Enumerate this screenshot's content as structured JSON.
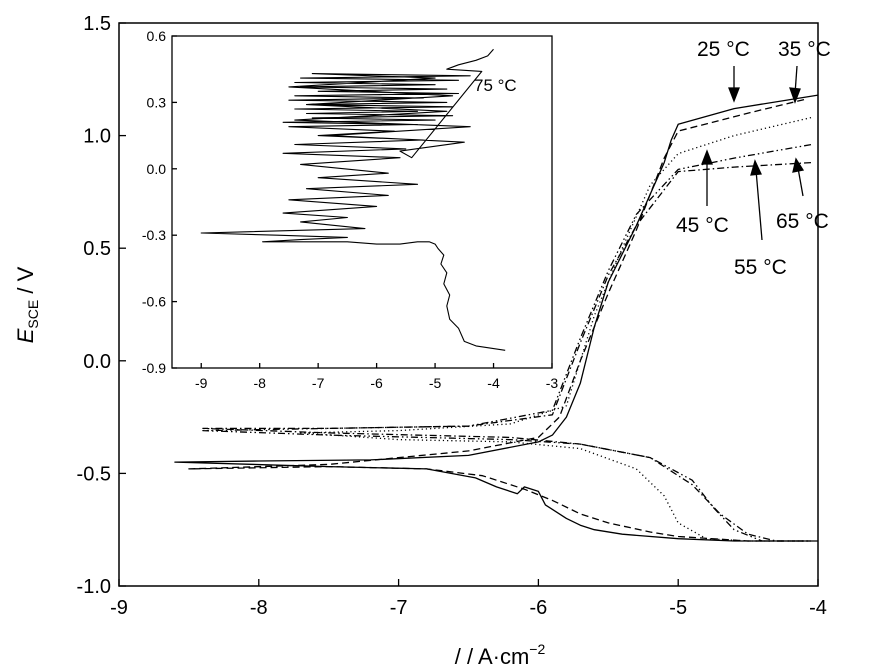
{
  "chart_data": [
    {
      "type": "line",
      "title": "",
      "ylabel_italic": "E",
      "ylabel_sub": "SCE",
      "ylabel_unit": " / V",
      "xlabel_prefix": "/",
      "xlabel": " / A·cm",
      "xlabel_sup": "−2",
      "xlim": [
        -9,
        -4
      ],
      "ylim": [
        -1.0,
        1.5
      ],
      "x_ticks": [
        -9,
        -8,
        -7,
        -6,
        -5,
        -4
      ],
      "x_tick_labels": [
        "-9",
        "-8",
        "-7",
        "-6",
        "-5",
        "-4"
      ],
      "y_ticks": [
        -1.0,
        -0.5,
        0.0,
        0.5,
        1.0,
        1.5
      ],
      "y_tick_labels": [
        "-1.0",
        "-0.5",
        "0.0",
        "0.5",
        "1.0",
        "1.5"
      ],
      "grid": false,
      "legend": "none",
      "annotations": [
        {
          "text": "25 °C",
          "series": "25 °C"
        },
        {
          "text": "35 °C",
          "series": "35 °C"
        },
        {
          "text": "45 °C",
          "series": "45 °C"
        },
        {
          "text": "55 °C",
          "series": "55 °C"
        },
        {
          "text": "65 °C",
          "series": "65 °C"
        }
      ],
      "series": [
        {
          "name": "25 °C",
          "style": "solid",
          "x": [
            -4.0,
            -4.6,
            -5.0,
            -5.05,
            -5.1,
            -5.3,
            -5.5,
            -5.6,
            -5.7,
            -5.8,
            -5.9,
            -6.0,
            -6.5,
            -7.2,
            -8.0,
            -8.6,
            -7.5,
            -6.8,
            -6.45,
            -6.3,
            -6.15,
            -6.1,
            -6.0,
            -5.95,
            -5.8,
            -5.7,
            -5.6,
            -5.4,
            -5.0,
            -4.6,
            -4.0
          ],
          "y": [
            1.18,
            1.12,
            1.05,
            0.98,
            0.88,
            0.6,
            0.35,
            0.15,
            -0.1,
            -0.25,
            -0.33,
            -0.36,
            -0.42,
            -0.44,
            -0.445,
            -0.45,
            -0.47,
            -0.48,
            -0.52,
            -0.56,
            -0.59,
            -0.56,
            -0.58,
            -0.64,
            -0.7,
            -0.73,
            -0.75,
            -0.77,
            -0.79,
            -0.8,
            -0.8
          ]
        },
        {
          "name": "35 °C",
          "style": "dashed",
          "x": [
            -4.1,
            -4.5,
            -5.0,
            -5.1,
            -5.3,
            -5.5,
            -5.7,
            -5.85,
            -6.0,
            -6.5,
            -7.5,
            -8.5,
            -7.5,
            -6.8,
            -6.4,
            -6.1,
            -5.9,
            -5.7,
            -5.5,
            -5.2,
            -5.0,
            -4.5,
            -4.1
          ],
          "y": [
            1.16,
            1.1,
            1.02,
            0.9,
            0.58,
            0.3,
            0.0,
            -0.25,
            -0.34,
            -0.4,
            -0.46,
            -0.48,
            -0.47,
            -0.48,
            -0.51,
            -0.57,
            -0.62,
            -0.68,
            -0.72,
            -0.76,
            -0.78,
            -0.8,
            -0.8
          ]
        },
        {
          "name": "45 °C",
          "style": "dotted",
          "x": [
            -4.05,
            -4.6,
            -5.0,
            -5.2,
            -5.4,
            -5.6,
            -5.8,
            -6.2,
            -7.0,
            -7.7,
            -7.0,
            -6.2,
            -5.7,
            -5.3,
            -5.1,
            -5.0,
            -4.8,
            -4.5,
            -4.05
          ],
          "y": [
            1.08,
            1.0,
            0.92,
            0.78,
            0.5,
            0.2,
            -0.2,
            -0.28,
            -0.31,
            -0.32,
            -0.35,
            -0.36,
            -0.39,
            -0.48,
            -0.6,
            -0.72,
            -0.79,
            -0.8,
            -0.8
          ]
        },
        {
          "name": "55 °C",
          "style": "dash-dot-dot",
          "x": [
            -4.05,
            -4.6,
            -5.0,
            -5.3,
            -5.5,
            -5.7,
            -5.9,
            -6.5,
            -7.5,
            -8.4,
            -7.5,
            -6.2,
            -5.7,
            -5.2,
            -4.9,
            -4.75,
            -4.6,
            -4.4,
            -4.05
          ],
          "y": [
            0.96,
            0.9,
            0.85,
            0.65,
            0.4,
            0.1,
            -0.22,
            -0.29,
            -0.3,
            -0.31,
            -0.33,
            -0.35,
            -0.37,
            -0.43,
            -0.53,
            -0.65,
            -0.75,
            -0.8,
            -0.8
          ]
        },
        {
          "name": "65 °C",
          "style": "dash-dot",
          "x": [
            -4.05,
            -4.6,
            -5.0,
            -5.3,
            -5.5,
            -5.7,
            -5.9,
            -6.5,
            -7.5,
            -8.4,
            -7.5,
            -6.2,
            -5.7,
            -5.2,
            -4.9,
            -4.7,
            -4.5,
            -4.3,
            -4.05
          ],
          "y": [
            0.88,
            0.86,
            0.84,
            0.6,
            0.38,
            0.08,
            -0.24,
            -0.29,
            -0.3,
            -0.3,
            -0.32,
            -0.34,
            -0.37,
            -0.43,
            -0.55,
            -0.68,
            -0.77,
            -0.8,
            -0.8
          ]
        }
      ]
    },
    {
      "type": "line",
      "title": "",
      "annotation": "75 °C",
      "xlim": [
        -9.5,
        -3
      ],
      "ylim": [
        -0.9,
        0.6
      ],
      "x_ticks": [
        -9,
        -8,
        -7,
        -6,
        -5,
        -4,
        -3
      ],
      "x_tick_labels": [
        "-9",
        "-8",
        "-7",
        "-6",
        "-5",
        "-4",
        "-3"
      ],
      "y_ticks": [
        -0.9,
        -0.6,
        -0.3,
        0.0,
        0.3,
        0.6
      ],
      "y_tick_labels": [
        "-0.9",
        "-0.6",
        "-0.3",
        "0.0",
        "0.3",
        "0.6"
      ],
      "grid": false,
      "legend": "none",
      "series": [
        {
          "name": "75 °C",
          "style": "solid",
          "x": [
            -3.8,
            -4.3,
            -4.5,
            -4.6,
            -4.75,
            -4.8,
            -4.75,
            -4.85,
            -4.8,
            -4.9,
            -4.85,
            -4.95,
            -5.0,
            -5.1,
            -5.3,
            -5.6,
            -6.0,
            -6.5,
            -7.0,
            -7.95,
            -7.3,
            -6.5,
            -7.7,
            -9.0,
            -6.2,
            -7.3,
            -6.5,
            -7.6,
            -6.0,
            -7.5,
            -5.8,
            -7.2,
            -5.3,
            -7.0,
            -5.8,
            -7.3,
            -5.6,
            -7.6,
            -5.5,
            -7.4,
            -5.2,
            -7.0,
            -5.7,
            -7.5,
            -5.3,
            -7.6,
            -5.0,
            -7.1,
            -4.7,
            -7.2,
            -5.3,
            -7.4,
            -4.7,
            -7.2,
            -4.8,
            -7.5,
            -5.2,
            -7.4,
            -4.6,
            -7.0,
            -4.8,
            -7.3,
            -5.0,
            -7.4,
            -4.6,
            -7.3,
            -4.4,
            -7.1,
            -5.0,
            -7.5,
            -4.7,
            -7.2,
            -4.8,
            -7.4,
            -4.4,
            -6.8,
            -4.5,
            -5.6,
            -5.4,
            -4.2,
            -4.8,
            -4.6,
            -4.3,
            -4.1,
            -4.0
          ],
          "y": [
            -0.82,
            -0.8,
            -0.78,
            -0.72,
            -0.68,
            -0.62,
            -0.57,
            -0.52,
            -0.47,
            -0.43,
            -0.39,
            -0.36,
            -0.34,
            -0.33,
            -0.33,
            -0.34,
            -0.34,
            -0.33,
            -0.33,
            -0.33,
            -0.32,
            -0.31,
            -0.3,
            -0.29,
            -0.27,
            -0.24,
            -0.22,
            -0.2,
            -0.17,
            -0.14,
            -0.12,
            -0.09,
            -0.07,
            -0.04,
            -0.02,
            0.02,
            0.05,
            0.07,
            0.09,
            0.11,
            0.13,
            0.15,
            0.17,
            0.19,
            0.2,
            0.21,
            0.22,
            0.23,
            0.24,
            0.25,
            0.26,
            0.27,
            0.28,
            0.29,
            0.3,
            0.31,
            0.32,
            0.33,
            0.34,
            0.35,
            0.36,
            0.37,
            0.38,
            0.39,
            0.4,
            0.41,
            0.42,
            0.43,
            0.41,
            0.37,
            0.33,
            0.29,
            0.26,
            0.22,
            0.19,
            0.15,
            0.12,
            0.08,
            0.05,
            0.44,
            0.45,
            0.47,
            0.49,
            0.51,
            0.54
          ]
        }
      ]
    }
  ]
}
